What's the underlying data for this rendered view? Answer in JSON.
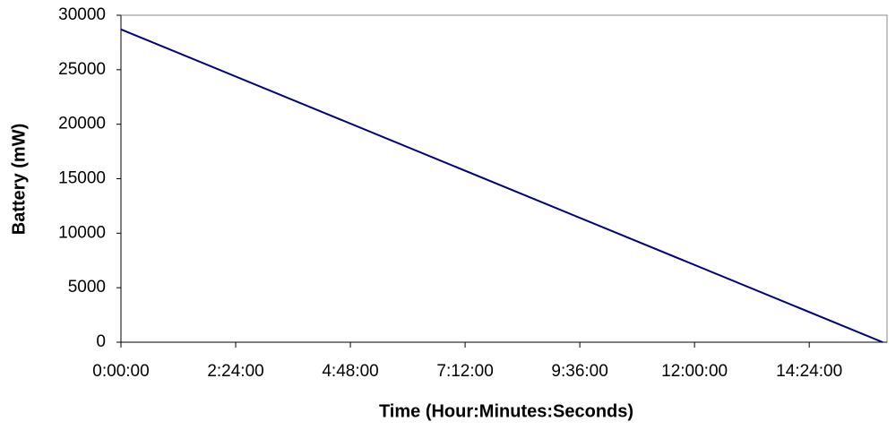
{
  "chart_data": {
    "type": "line",
    "xlabel": "Time (Hour:Minutes:Seconds)",
    "ylabel": "Battery (mW)",
    "x": [
      0,
      57375
    ],
    "series": [
      {
        "name": "Battery",
        "color": "#000080",
        "values": [
          28700,
          0
        ]
      }
    ],
    "xlim": [
      0,
      57700
    ],
    "ylim": [
      0,
      30000
    ],
    "xticks": [
      {
        "value": 0,
        "label": "0:00:00"
      },
      {
        "value": 8640,
        "label": "2:24:00"
      },
      {
        "value": 17280,
        "label": "4:48:00"
      },
      {
        "value": 25920,
        "label": "7:12:00"
      },
      {
        "value": 34560,
        "label": "9:36:00"
      },
      {
        "value": 43200,
        "label": "12:00:00"
      },
      {
        "value": 51840,
        "label": "14:24:00"
      }
    ],
    "yticks": [
      0,
      5000,
      10000,
      15000,
      20000,
      25000,
      30000
    ],
    "grid": false
  }
}
